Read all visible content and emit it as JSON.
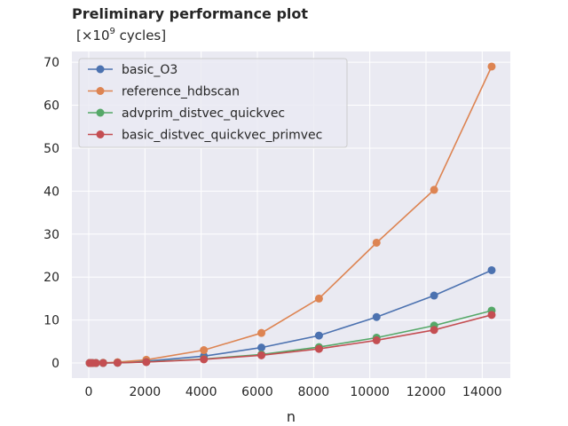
{
  "chart_data": {
    "type": "line",
    "title": "Preliminary performance plot",
    "subtitle_prefix": "[×10",
    "subtitle_exp": "9",
    "subtitle_suffix": " cycles]",
    "xlabel": "n",
    "ylabel": "",
    "xlim": [
      -600,
      15000
    ],
    "ylim": [
      -3.5,
      72.5
    ],
    "xticks": [
      0,
      2000,
      4000,
      6000,
      8000,
      10000,
      12000,
      14000
    ],
    "yticks": [
      0,
      10,
      20,
      30,
      40,
      50,
      60,
      70
    ],
    "grid": true,
    "legend_position": "top-left",
    "x": [
      32,
      64,
      128,
      256,
      512,
      1024,
      2048,
      4096,
      6144,
      8192,
      10240,
      12288,
      14336
    ],
    "series": [
      {
        "name": "basic_O3",
        "color": "#4c72b0",
        "values": [
          0,
          0,
          0,
          0,
          0.02,
          0.1,
          0.45,
          1.6,
          3.6,
          6.4,
          10.7,
          15.7,
          21.6
        ]
      },
      {
        "name": "reference_hdbscan",
        "color": "#dd8452",
        "values": [
          0,
          0,
          0,
          0.01,
          0.05,
          0.2,
          0.75,
          3.0,
          7.0,
          15.0,
          28.0,
          40.3,
          69.0
        ]
      },
      {
        "name": "advprim_distvec_quickvec",
        "color": "#55a868",
        "values": [
          0,
          0,
          0,
          0,
          0.02,
          0.06,
          0.25,
          0.95,
          2.0,
          3.7,
          5.9,
          8.7,
          12.2
        ]
      },
      {
        "name": "basic_distvec_quickvec_primvec",
        "color": "#c44e52",
        "values": [
          0,
          0,
          0,
          0,
          0.02,
          0.05,
          0.22,
          0.85,
          1.8,
          3.3,
          5.3,
          7.7,
          11.2
        ]
      }
    ]
  }
}
